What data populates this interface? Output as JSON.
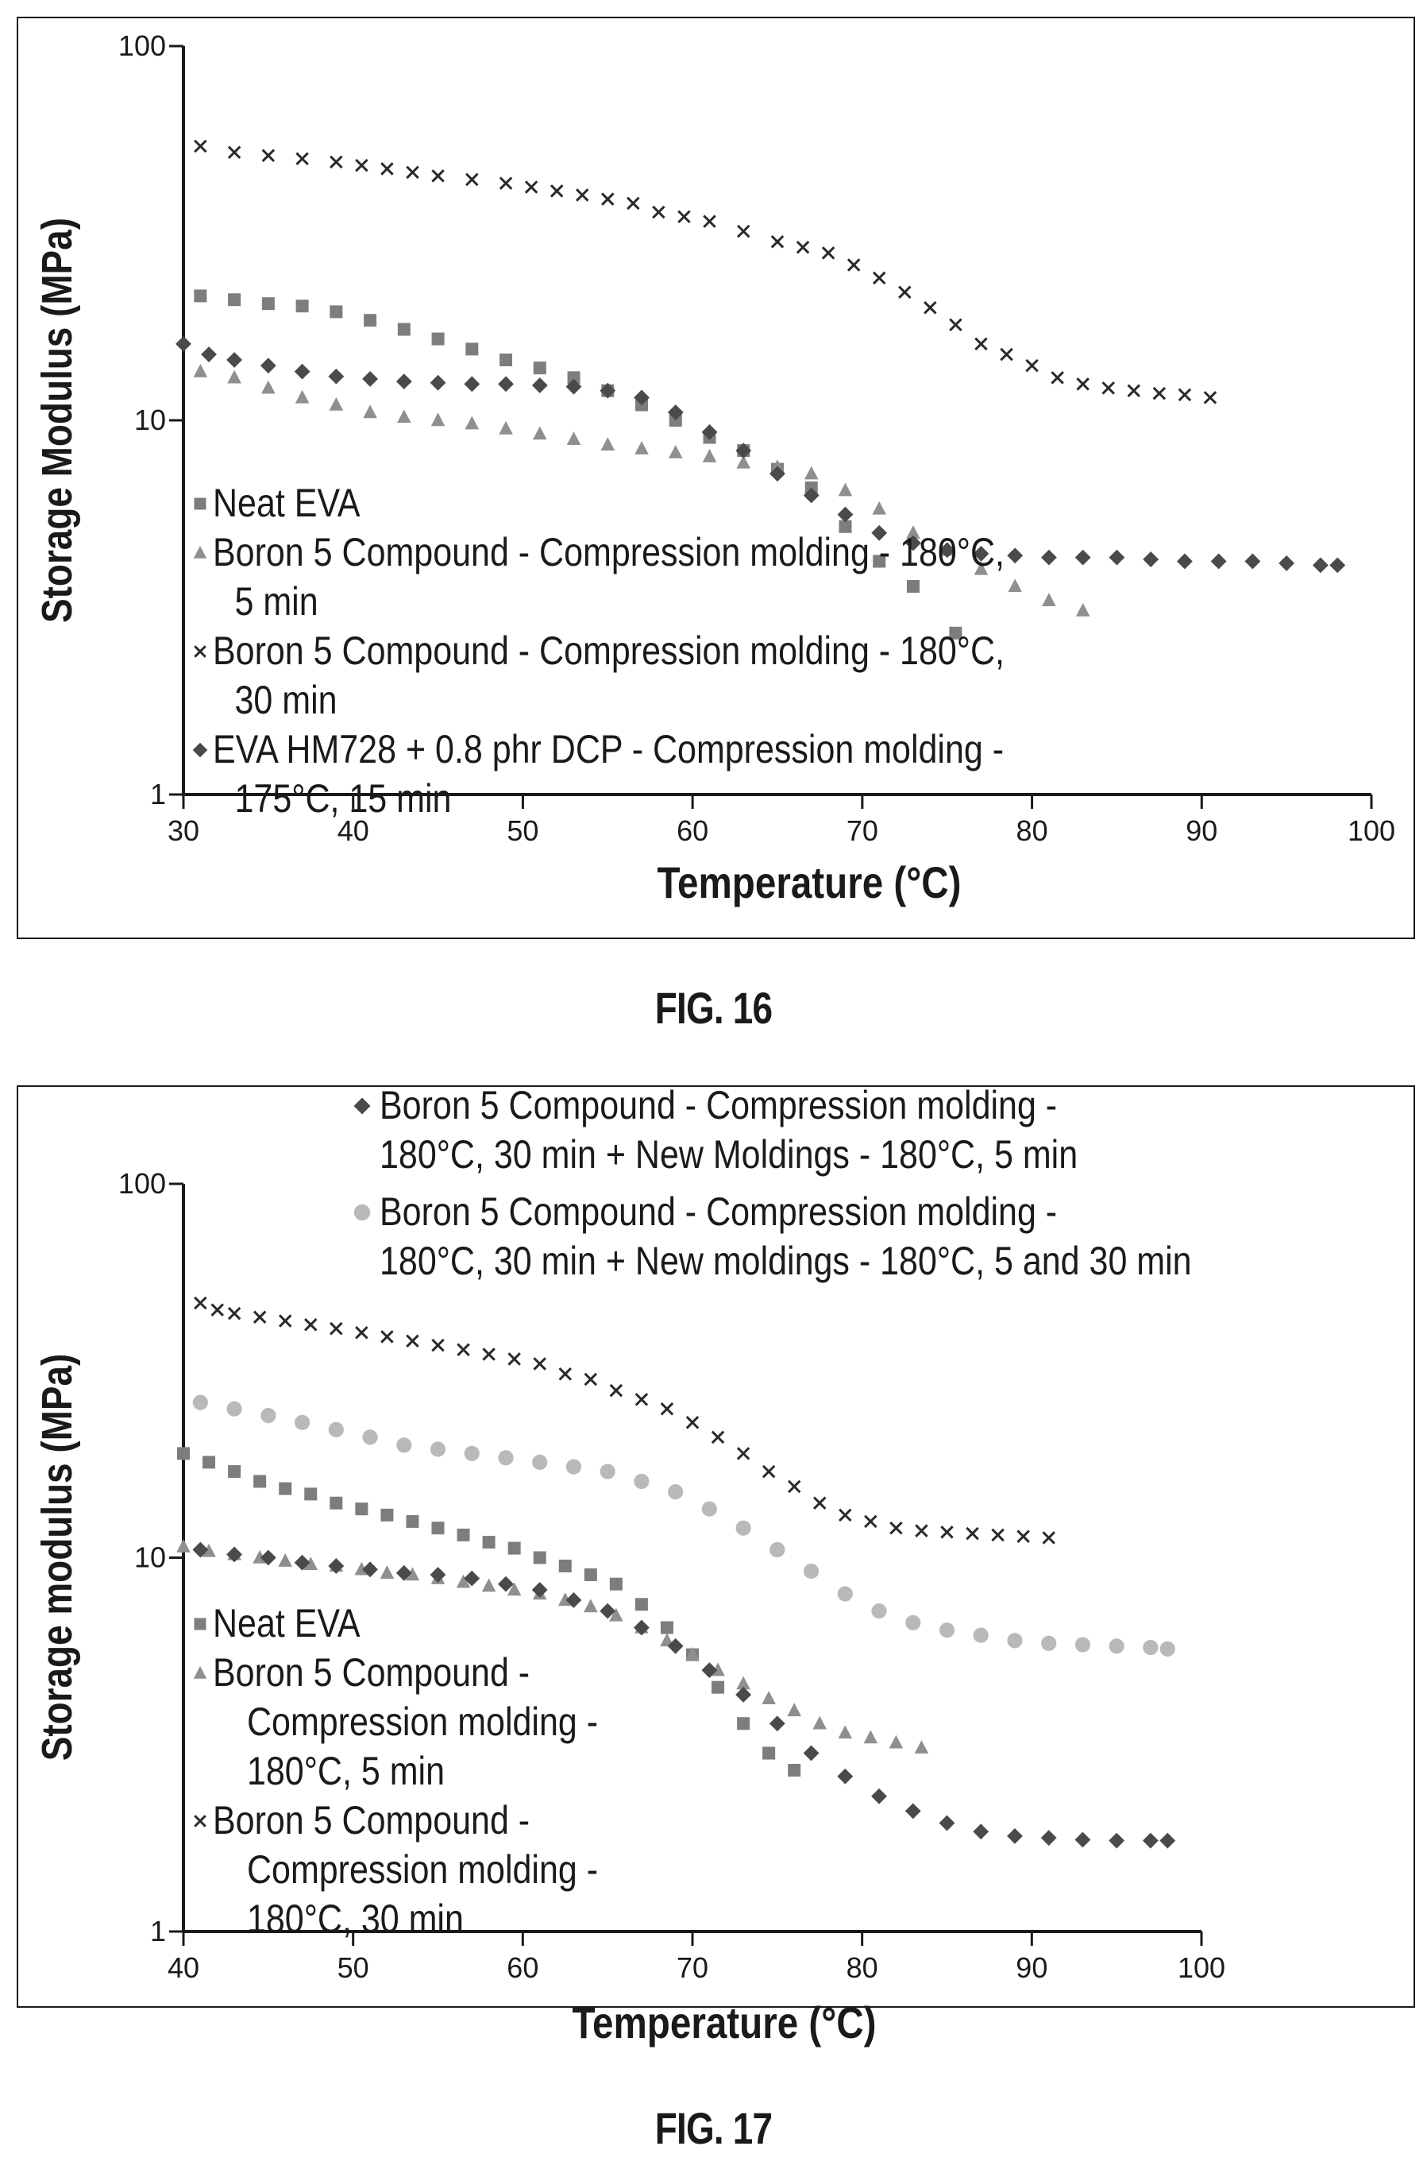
{
  "figures": [
    {
      "caption": "FIG. 16"
    },
    {
      "caption": "FIG. 17"
    }
  ],
  "colors": {
    "square": "#7d7d7d",
    "triangle": "#8f8f8f",
    "cross": "#2a2a2a",
    "diamond": "#4a4a4a",
    "circle": "#b9b9b9",
    "axis": "#1a1a1a"
  },
  "chart_data": [
    {
      "type": "scatter",
      "title": "",
      "xlabel": "Temperature (°C)",
      "ylabel": "Storage Modulus (MPa)",
      "xlim": [
        30,
        100
      ],
      "ylim": [
        1,
        100
      ],
      "yscale": "log",
      "xticks": [
        "30",
        "40",
        "50",
        "60",
        "70",
        "80",
        "90",
        "100"
      ],
      "yticks": [
        "1",
        "10",
        "100"
      ],
      "legend_placement": "bottom-left",
      "series": [
        {
          "name": "Neat EVA",
          "marker": "square",
          "x": [
            31,
            33,
            35,
            37,
            39,
            41,
            43,
            45,
            47,
            49,
            51,
            53,
            55,
            57,
            59,
            61,
            63,
            65,
            67,
            69,
            71,
            73,
            75.5
          ],
          "y": [
            21.5,
            21,
            20.5,
            20.2,
            19.5,
            18.5,
            17.5,
            16.5,
            15.5,
            14.5,
            13.8,
            13,
            12,
            11,
            10,
            9,
            8.3,
            7.4,
            6.6,
            5.2,
            4.2,
            3.6,
            2.7
          ]
        },
        {
          "name": "Boron 5 Compound - Compression molding - 180°C, 5 min",
          "marker": "triangle",
          "x": [
            31,
            33,
            35,
            37,
            39,
            41,
            43,
            45,
            47,
            49,
            51,
            53,
            55,
            57,
            59,
            61,
            63,
            65,
            67,
            69,
            71,
            73,
            75,
            77,
            79,
            81,
            83
          ],
          "y": [
            13.5,
            13,
            12.2,
            11.5,
            11,
            10.5,
            10.2,
            10,
            9.8,
            9.5,
            9.2,
            8.9,
            8.6,
            8.4,
            8.2,
            8,
            7.7,
            7.5,
            7.2,
            6.5,
            5.8,
            5,
            4.5,
            4,
            3.6,
            3.3,
            3.1
          ]
        },
        {
          "name": "Boron 5 Compound - Compression molding - 180°C, 30 min",
          "marker": "cross",
          "x": [
            31,
            33,
            35,
            37,
            39,
            40.5,
            42,
            43.5,
            45,
            47,
            49,
            50.5,
            52,
            53.5,
            55,
            56.5,
            58,
            59.5,
            61,
            63,
            65,
            66.5,
            68,
            69.5,
            71,
            72.5,
            74,
            75.5,
            77,
            78.5,
            80,
            81.5,
            83,
            84.5,
            86,
            87.5,
            89,
            90.5
          ],
          "y": [
            54,
            52,
            51,
            50,
            49,
            48,
            47,
            46,
            45,
            44,
            43,
            42,
            41,
            40,
            39,
            38,
            36,
            35,
            34,
            32,
            30,
            29,
            28,
            26,
            24,
            22,
            20,
            18,
            16,
            15,
            14,
            13,
            12.5,
            12.2,
            12,
            11.8,
            11.7,
            11.5
          ]
        },
        {
          "name": "EVA HM728 + 0.8 phr DCP - Compression molding - 175°C, 15 min",
          "marker": "diamond",
          "x": [
            30,
            31.5,
            33,
            35,
            37,
            39,
            41,
            43,
            45,
            47,
            49,
            51,
            53,
            55,
            57,
            59,
            61,
            63,
            65,
            67,
            69,
            71,
            73,
            75,
            77,
            79,
            81,
            83,
            85,
            87,
            89,
            91,
            93,
            95,
            97,
            98
          ],
          "y": [
            16,
            15,
            14.5,
            14,
            13.5,
            13.1,
            12.9,
            12.7,
            12.6,
            12.5,
            12.5,
            12.4,
            12.3,
            12,
            11.5,
            10.5,
            9.3,
            8.3,
            7.2,
            6.3,
            5.6,
            5,
            4.7,
            4.5,
            4.4,
            4.35,
            4.3,
            4.3,
            4.3,
            4.25,
            4.2,
            4.2,
            4.2,
            4.15,
            4.1,
            4.1
          ]
        }
      ]
    },
    {
      "type": "scatter",
      "title": "",
      "xlabel": "Temperature (°C)",
      "ylabel": "Storage modulus (MPa)",
      "xlim": [
        40,
        100
      ],
      "ylim": [
        1,
        100
      ],
      "yscale": "log",
      "xticks": [
        "40",
        "50",
        "60",
        "70",
        "80",
        "90",
        "100"
      ],
      "yticks": [
        "1",
        "10",
        "100"
      ],
      "legend_placement": "bottom-left",
      "top_legend_placement": "top",
      "series": [
        {
          "name": "Neat EVA",
          "marker": "square",
          "x": [
            40,
            41.5,
            43,
            44.5,
            46,
            47.5,
            49,
            50.5,
            52,
            53.5,
            55,
            56.5,
            58,
            59.5,
            61,
            62.5,
            64,
            65.5,
            67,
            68.5,
            70,
            71.5,
            73,
            74.5,
            76
          ],
          "y": [
            19,
            18,
            17,
            16,
            15.3,
            14.8,
            14,
            13.5,
            13,
            12.5,
            12,
            11.5,
            11,
            10.6,
            10,
            9.5,
            9,
            8.5,
            7.5,
            6.5,
            5.5,
            4.5,
            3.6,
            3,
            2.7
          ]
        },
        {
          "name": "Boron 5 Compound - Compression molding - 180°C, 5 min",
          "marker": "triangle",
          "x": [
            40,
            41.5,
            43,
            44.5,
            46,
            47.5,
            49,
            50.5,
            52,
            53.5,
            55,
            56.5,
            58,
            59.5,
            61,
            62.5,
            64,
            65.5,
            67,
            68.5,
            70,
            71.5,
            73,
            74.5,
            76,
            77.5,
            79,
            80.5,
            82,
            83.5
          ],
          "y": [
            10.7,
            10.4,
            10.2,
            10,
            9.8,
            9.6,
            9.5,
            9.3,
            9.1,
            9,
            8.8,
            8.6,
            8.4,
            8.2,
            8,
            7.7,
            7.4,
            7,
            6.5,
            6,
            5.5,
            5,
            4.6,
            4.2,
            3.9,
            3.6,
            3.4,
            3.3,
            3.2,
            3.1
          ]
        },
        {
          "name": "Boron 5 Compound - Compression molding - 180°C, 30 min",
          "marker": "cross",
          "x": [
            41,
            42,
            43,
            44.5,
            46,
            47.5,
            49,
            50.5,
            52,
            53.5,
            55,
            56.5,
            58,
            59.5,
            61,
            62.5,
            64,
            65.5,
            67,
            68.5,
            70,
            71.5,
            73,
            74.5,
            76,
            77.5,
            79,
            80.5,
            82,
            83.5,
            85,
            86.5,
            88,
            89.5,
            91
          ],
          "y": [
            48,
            46,
            45,
            44,
            43,
            42,
            41,
            40,
            39,
            38,
            37,
            36,
            35,
            34,
            33,
            31,
            30,
            28,
            26.5,
            25,
            23,
            21,
            19,
            17,
            15.5,
            14,
            13,
            12.5,
            12,
            11.8,
            11.7,
            11.6,
            11.5,
            11.4,
            11.3
          ]
        },
        {
          "name": "Boron 5 Compound - Compression molding - 180°C, 30 min + New Moldings - 180°C, 5 min",
          "marker": "diamond",
          "x": [
            41,
            43,
            45,
            47,
            49,
            51,
            53,
            55,
            57,
            59,
            61,
            63,
            65,
            67,
            69,
            71,
            73,
            75,
            77,
            79,
            81,
            83,
            85,
            87,
            89,
            91,
            93,
            95,
            97,
            98
          ],
          "y": [
            10.5,
            10.2,
            10,
            9.7,
            9.5,
            9.3,
            9.1,
            9,
            8.8,
            8.5,
            8.2,
            7.7,
            7.2,
            6.5,
            5.8,
            5,
            4.3,
            3.6,
            3,
            2.6,
            2.3,
            2.1,
            1.95,
            1.85,
            1.8,
            1.78,
            1.76,
            1.75,
            1.75,
            1.75
          ]
        },
        {
          "name": "Boron 5 Compound - Compression molding - 180°C, 30 min + New moldings - 180°C, 5 and 30 min",
          "marker": "circle",
          "x": [
            41,
            43,
            45,
            47,
            49,
            51,
            53,
            55,
            57,
            59,
            61,
            63,
            65,
            67,
            69,
            71,
            73,
            75,
            77,
            79,
            81,
            83,
            85,
            87,
            89,
            91,
            93,
            95,
            97,
            98
          ],
          "y": [
            26,
            25,
            24,
            23,
            22,
            21,
            20,
            19.5,
            19,
            18.5,
            18,
            17.5,
            17,
            16,
            15,
            13.5,
            12,
            10.5,
            9.2,
            8,
            7.2,
            6.7,
            6.4,
            6.2,
            6,
            5.9,
            5.85,
            5.8,
            5.75,
            5.7
          ]
        }
      ]
    }
  ]
}
